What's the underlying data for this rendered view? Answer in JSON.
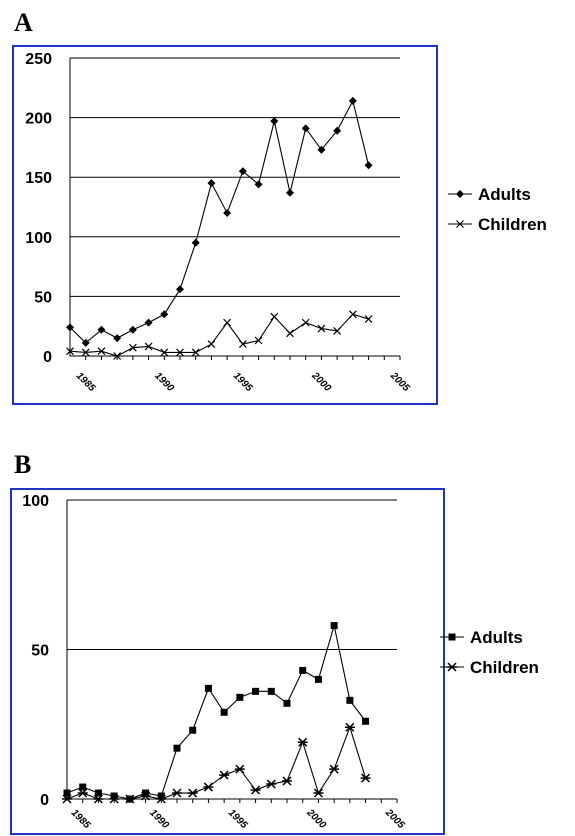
{
  "panels": [
    {
      "letter": "A"
    },
    {
      "letter": "B"
    }
  ],
  "colors": {
    "border": "#2233cc",
    "line": "#000000",
    "grid": "#000000"
  },
  "chart_data": [
    {
      "type": "line",
      "panel": "A",
      "x_ticks": [
        "1985",
        "1990",
        "1995",
        "2000",
        "2005"
      ],
      "y_ticks": [
        "0",
        "50",
        "100",
        "150",
        "200",
        "250"
      ],
      "xlim": [
        1984,
        2005
      ],
      "ylim": [
        0,
        250
      ],
      "grid": true,
      "legend_position": "right",
      "series": [
        {
          "name": "Adults",
          "marker": "diamond",
          "x": [
            1984,
            1985,
            1986,
            1987,
            1988,
            1989,
            1990,
            1991,
            1992,
            1993,
            1994,
            1995,
            1996,
            1997,
            1998,
            1999,
            2000,
            2001,
            2002,
            2003
          ],
          "values": [
            24,
            11,
            22,
            15,
            22,
            28,
            35,
            56,
            95,
            145,
            120,
            155,
            144,
            197,
            137,
            191,
            173,
            189,
            214,
            160
          ]
        },
        {
          "name": "Children",
          "marker": "x",
          "x": [
            1984,
            1985,
            1986,
            1987,
            1988,
            1989,
            1990,
            1991,
            1992,
            1993,
            1994,
            1995,
            1996,
            1997,
            1998,
            1999,
            2000,
            2001,
            2002,
            2003
          ],
          "values": [
            4,
            3,
            4,
            0,
            7,
            8,
            3,
            3,
            3,
            10,
            28,
            10,
            13,
            33,
            19,
            28,
            23,
            21,
            35,
            31
          ]
        }
      ]
    },
    {
      "type": "line",
      "panel": "B",
      "x_ticks": [
        "1985",
        "1990",
        "1995",
        "2000",
        "2005"
      ],
      "y_ticks": [
        "0",
        "50",
        "100"
      ],
      "xlim": [
        1984,
        2005
      ],
      "ylim": [
        0,
        100
      ],
      "grid": true,
      "legend_position": "right",
      "series": [
        {
          "name": "Adults",
          "marker": "square",
          "x": [
            1984,
            1985,
            1986,
            1987,
            1988,
            1989,
            1990,
            1991,
            1992,
            1993,
            1994,
            1995,
            1996,
            1997,
            1998,
            1999,
            2000,
            2001,
            2002,
            2003
          ],
          "values": [
            2,
            4,
            2,
            1,
            0,
            2,
            1,
            17,
            23,
            37,
            29,
            34,
            36,
            36,
            32,
            43,
            40,
            58,
            33,
            26
          ]
        },
        {
          "name": "Children",
          "marker": "star",
          "x": [
            1984,
            1985,
            1986,
            1987,
            1988,
            1989,
            1990,
            1991,
            1992,
            1993,
            1994,
            1995,
            1996,
            1997,
            1998,
            1999,
            2000,
            2001,
            2002,
            2003
          ],
          "values": [
            0,
            2,
            0,
            0,
            0,
            1,
            0,
            2,
            2,
            4,
            8,
            10,
            3,
            5,
            6,
            19,
            2,
            10,
            24,
            7
          ]
        }
      ]
    }
  ]
}
